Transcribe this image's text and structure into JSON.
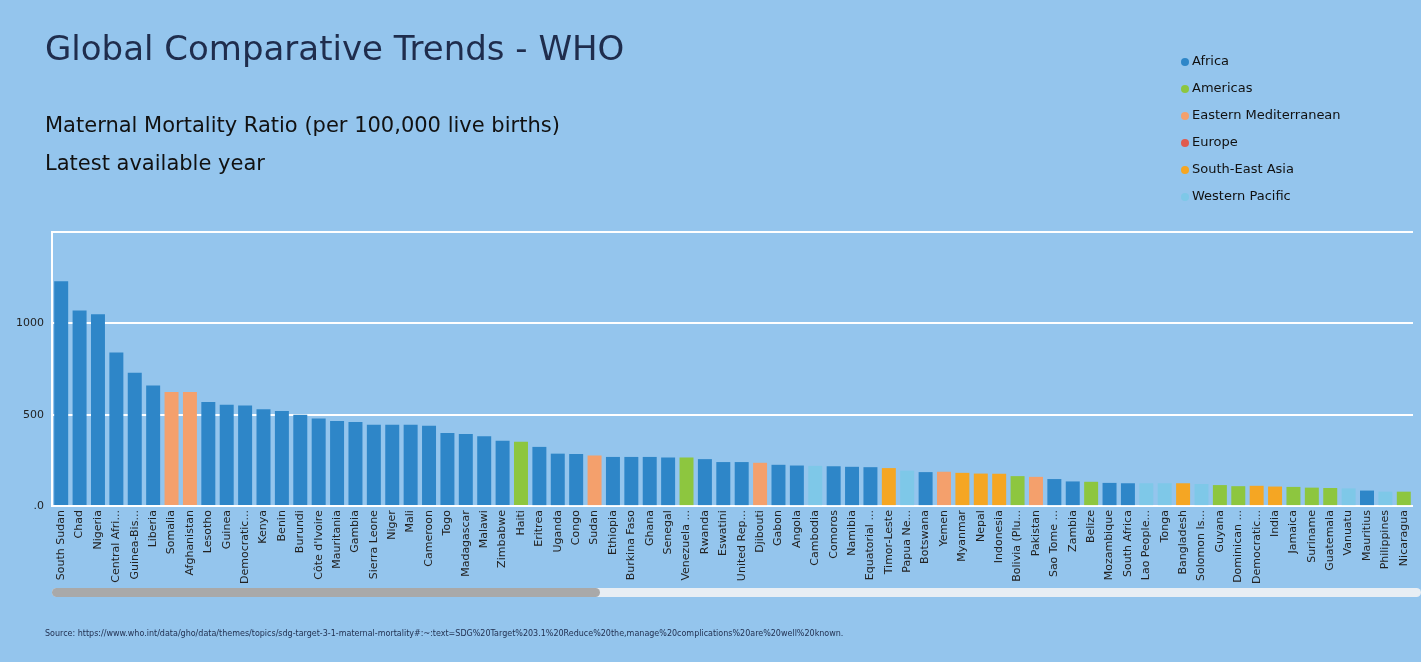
{
  "chart_data": {
    "type": "bar",
    "title": "Global Comparative Trends - WHO",
    "subtitle": "Maternal Mortality Ratio (per 100,000 live births)\nLatest available year",
    "annotations": [
      "Source: https://www.who.int/data/gho/data/themes/topics/sdg-target-3-1-maternal-mortality#:~:text=SDG%20Target%203.1%20Reduce%20the,manage%20complications%20are%20well%20known."
    ],
    "categories": [
      "South Sudan",
      "Chad",
      "Nigeria",
      "Central Afri...",
      "Guinea-Bis...",
      "Liberia",
      "Somalia",
      "Afghanistan",
      "Lesotho",
      "Guinea",
      "Democratic...",
      "Kenya",
      "Benin",
      "Burundi",
      "Côte d'Ivoire",
      "Mauritania",
      "Gambia",
      "Sierra Leone",
      "Niger",
      "Mali",
      "Cameroon",
      "Togo",
      "Madagascar",
      "Malawi",
      "Zimbabwe",
      "Haiti",
      "Eritrea",
      "Uganda",
      "Congo",
      "Sudan",
      "Ethiopia",
      "Burkina Faso",
      "Ghana",
      "Senegal",
      "Venezuela ...",
      "Rwanda",
      "Eswatini",
      "United Rep...",
      "Djibouti",
      "Gabon",
      "Angola",
      "Cambodia",
      "Comoros",
      "Namibia",
      "Equatorial ...",
      "Timor-Leste",
      "Papua Ne...",
      "Botswana",
      "Yemen",
      "Myanmar",
      "Nepal",
      "Indonesia",
      "Bolivia (Plu...",
      "Pakistan",
      "Sao Tome ...",
      "Zambia",
      "Belize",
      "Mozambique",
      "South Africa",
      "Lao People...",
      "Tonga",
      "Bangladesh",
      "Solomon Is...",
      "Guyana",
      "Dominican ...",
      "Democratic...",
      "India",
      "Jamaica",
      "Suriname",
      "Guatemala",
      "Vanuatu",
      "Mauritius",
      "Philippines",
      "Nicaragua"
    ],
    "stacked": true,
    "series": [
      {
        "name": "Africa",
        "color": "#2e86c8",
        "values": [
          1230,
          1070,
          1050,
          840,
          730,
          660,
          null,
          null,
          570,
          555,
          550,
          530,
          520,
          500,
          480,
          466,
          460,
          445,
          445,
          445,
          440,
          400,
          395,
          382,
          358,
          null,
          324,
          287,
          285,
          null,
          269,
          269,
          269,
          266,
          null,
          257,
          241,
          241,
          null,
          226,
          222,
          null,
          218,
          215,
          213,
          null,
          null,
          186,
          null,
          null,
          null,
          null,
          null,
          null,
          148,
          135,
          null,
          127,
          125,
          null,
          null,
          null,
          null,
          null,
          null,
          null,
          null,
          null,
          null,
          null,
          null,
          85,
          null,
          null
        ]
      },
      {
        "name": "Americas",
        "color": "#8dc63f",
        "values": [
          null,
          null,
          null,
          null,
          null,
          null,
          null,
          null,
          null,
          null,
          null,
          null,
          null,
          null,
          null,
          null,
          null,
          null,
          null,
          null,
          null,
          null,
          null,
          null,
          null,
          352,
          null,
          null,
          null,
          null,
          null,
          null,
          null,
          null,
          266,
          null,
          null,
          null,
          null,
          null,
          null,
          null,
          null,
          null,
          null,
          null,
          null,
          null,
          null,
          null,
          null,
          null,
          164,
          null,
          null,
          null,
          133,
          null,
          null,
          null,
          null,
          null,
          null,
          115,
          109,
          null,
          null,
          105,
          101,
          99,
          null,
          null,
          null,
          79
        ]
      },
      {
        "name": "Eastern Mediterranean",
        "color": "#f4a06c",
        "values": [
          null,
          null,
          null,
          null,
          null,
          null,
          625,
          625,
          null,
          null,
          null,
          null,
          null,
          null,
          null,
          null,
          null,
          null,
          null,
          null,
          null,
          null,
          null,
          null,
          null,
          null,
          null,
          null,
          null,
          277,
          null,
          null,
          null,
          null,
          null,
          null,
          null,
          null,
          237,
          null,
          null,
          null,
          null,
          null,
          null,
          null,
          null,
          null,
          188,
          null,
          null,
          null,
          null,
          160,
          null,
          null,
          null,
          null,
          null,
          null,
          null,
          null,
          null,
          null,
          null,
          null,
          null,
          null,
          null,
          null,
          null,
          null,
          null,
          null
        ]
      },
      {
        "name": "Europe",
        "color": "#e05a4e",
        "values": [
          null,
          null,
          null,
          null,
          null,
          null,
          null,
          null,
          null,
          null,
          null,
          null,
          null,
          null,
          null,
          null,
          null,
          null,
          null,
          null,
          null,
          null,
          null,
          null,
          null,
          null,
          null,
          null,
          null,
          null,
          null,
          null,
          null,
          null,
          null,
          null,
          null,
          null,
          null,
          null,
          null,
          null,
          null,
          null,
          null,
          null,
          null,
          null,
          null,
          null,
          null,
          null,
          null,
          null,
          null,
          null,
          null,
          null,
          null,
          null,
          null,
          null,
          null,
          null,
          null,
          null,
          null,
          null,
          null,
          null,
          null,
          null,
          null,
          null
        ]
      },
      {
        "name": "South-East Asia",
        "color": "#f5a623",
        "values": [
          null,
          null,
          null,
          null,
          null,
          null,
          null,
          null,
          null,
          null,
          null,
          null,
          null,
          null,
          null,
          null,
          null,
          null,
          null,
          null,
          null,
          null,
          null,
          null,
          null,
          null,
          null,
          null,
          null,
          null,
          null,
          null,
          null,
          null,
          null,
          null,
          null,
          null,
          null,
          null,
          null,
          null,
          null,
          null,
          null,
          208,
          null,
          null,
          null,
          182,
          178,
          177,
          null,
          null,
          null,
          null,
          null,
          null,
          null,
          null,
          null,
          125,
          null,
          null,
          null,
          111,
          107,
          null,
          null,
          null,
          null,
          null,
          null,
          null
        ]
      },
      {
        "name": "Western Pacific",
        "color": "#7ec8e8",
        "values": [
          null,
          null,
          null,
          null,
          null,
          null,
          null,
          null,
          null,
          null,
          null,
          null,
          null,
          null,
          null,
          null,
          null,
          null,
          null,
          null,
          null,
          null,
          null,
          null,
          null,
          null,
          null,
          null,
          null,
          null,
          null,
          null,
          null,
          null,
          null,
          null,
          null,
          null,
          null,
          null,
          null,
          220,
          null,
          null,
          null,
          null,
          194,
          null,
          null,
          null,
          null,
          null,
          null,
          null,
          null,
          null,
          null,
          null,
          null,
          125,
          125,
          null,
          121,
          null,
          null,
          null,
          null,
          null,
          null,
          null,
          97,
          null,
          79,
          null
        ]
      }
    ],
    "ylim": [
      0,
      1500
    ],
    "yticks": [
      {
        "value": 0,
        "label": ".0"
      },
      500,
      1000,
      {
        "value": 1500,
        "label": null
      }
    ],
    "grid": "y",
    "legend": "top right"
  }
}
